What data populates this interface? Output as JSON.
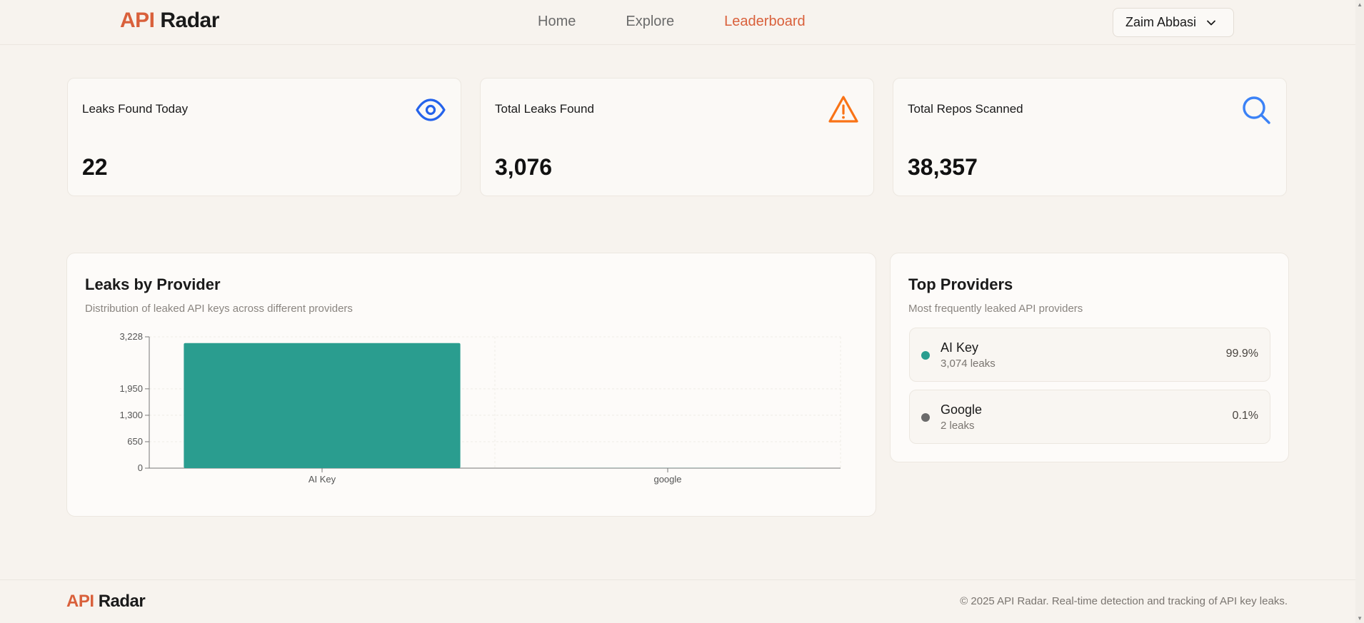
{
  "header": {
    "logo_api": "API",
    "logo_radar": "Radar",
    "nav": [
      "Home",
      "Explore",
      "Leaderboard"
    ],
    "active_nav": "Leaderboard",
    "user_name": "Zaim Abbasi"
  },
  "stats": [
    {
      "label": "Leaks Found Today",
      "value": "22",
      "icon": "eye-icon",
      "color": "#2563eb"
    },
    {
      "label": "Total Leaks Found",
      "value": "3,076",
      "icon": "warning-icon",
      "color": "#f97316"
    },
    {
      "label": "Total Repos Scanned",
      "value": "38,357",
      "icon": "search-icon",
      "color": "#3b82f6"
    }
  ],
  "leaks_panel": {
    "title": "Leaks by Provider",
    "subtitle": "Distribution of leaked API keys across different providers"
  },
  "chart_data": {
    "type": "bar",
    "categories": [
      "AI Key",
      "google"
    ],
    "values": [
      3074,
      2
    ],
    "ylim": [
      0,
      3228
    ],
    "yticks": [
      0,
      650,
      1300,
      1950,
      3228
    ],
    "ytick_labels": [
      "0",
      "650",
      "1,300",
      "1,950",
      "3,228"
    ],
    "bar_color": "#2a9d8f",
    "grid": true
  },
  "top_providers": {
    "title": "Top Providers",
    "subtitle": "Most frequently leaked API providers",
    "items": [
      {
        "name": "AI Key",
        "count": "3,074 leaks",
        "pct": "99.9%",
        "color": "#2a9d8f"
      },
      {
        "name": "Google",
        "count": "2 leaks",
        "pct": "0.1%",
        "color": "#6b6b6b"
      }
    ]
  },
  "footer": {
    "logo_api": "API",
    "logo_radar": "Radar",
    "text": "© 2025 API Radar. Real-time detection and tracking of API key leaks."
  }
}
